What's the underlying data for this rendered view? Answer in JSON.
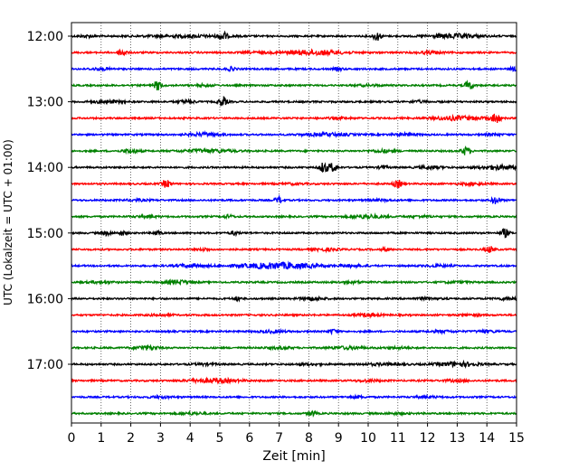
{
  "chart_data": {
    "type": "line",
    "title": "",
    "xlabel": "Zeit  [min]",
    "ylabel": "UTC (Lokalzeit = UTC + 01:00)",
    "xlim": [
      0,
      15
    ],
    "x_ticks": [
      0,
      1,
      2,
      3,
      4,
      5,
      6,
      7,
      8,
      9,
      10,
      11,
      12,
      13,
      14,
      15
    ],
    "y_ticks": [
      "12:00",
      "13:00",
      "14:00",
      "15:00",
      "16:00",
      "17:00"
    ],
    "grid": "vertical dotted",
    "trace_interval_min": 15,
    "colors": [
      "#000000",
      "#ff0000",
      "#0000ff",
      "#008000"
    ],
    "traces": [
      {
        "start": "12:00",
        "color": "#000000",
        "events": [
          [
            3.8,
            1.1,
            1.0
          ],
          [
            5.1,
            4.5,
            0.1
          ],
          [
            10.3,
            4.5,
            0.1
          ],
          [
            12.9,
            2.2,
            0.6
          ],
          [
            0.5,
            1.0,
            0.2
          ]
        ]
      },
      {
        "start": "12:15",
        "color": "#ff0000",
        "events": [
          [
            1.7,
            4.0,
            0.1
          ],
          [
            8.2,
            2.4,
            0.7
          ],
          [
            12.1,
            1.2,
            0.3
          ],
          [
            6.2,
            0.8,
            0.3
          ]
        ]
      },
      {
        "start": "12:30",
        "color": "#0000ff",
        "events": [
          [
            1.0,
            1.0,
            0.3
          ],
          [
            5.4,
            2.0,
            0.1
          ],
          [
            9.0,
            1.6,
            0.1
          ],
          [
            14.9,
            1.8,
            0.1
          ]
        ]
      },
      {
        "start": "12:45",
        "color": "#008000",
        "events": [
          [
            2.9,
            5.0,
            0.1
          ],
          [
            4.5,
            1.0,
            0.2
          ],
          [
            13.4,
            4.5,
            0.1
          ],
          [
            10.0,
            0.7,
            0.3
          ]
        ]
      },
      {
        "start": "13:00",
        "color": "#000000",
        "events": [
          [
            1.2,
            1.2,
            0.4
          ],
          [
            3.9,
            1.6,
            0.2
          ],
          [
            5.1,
            5.0,
            0.1
          ],
          [
            11.7,
            1.0,
            0.2
          ]
        ]
      },
      {
        "start": "13:15",
        "color": "#ff0000",
        "events": [
          [
            13.0,
            2.0,
            0.6
          ],
          [
            14.3,
            5.5,
            0.1
          ],
          [
            9.0,
            0.7,
            0.3
          ]
        ]
      },
      {
        "start": "13:30",
        "color": "#0000ff",
        "events": [
          [
            4.5,
            1.6,
            0.4
          ],
          [
            8.6,
            1.4,
            0.6
          ],
          [
            11.2,
            1.0,
            0.3
          ],
          [
            14.2,
            0.9,
            0.2
          ]
        ]
      },
      {
        "start": "13:45",
        "color": "#008000",
        "events": [
          [
            2.0,
            2.0,
            0.2
          ],
          [
            4.6,
            1.6,
            0.6
          ],
          [
            10.5,
            1.2,
            0.3
          ],
          [
            13.3,
            4.5,
            0.1
          ]
        ]
      },
      {
        "start": "14:00",
        "color": "#000000",
        "events": [
          [
            8.5,
            5.5,
            0.1
          ],
          [
            8.8,
            4.5,
            0.1
          ],
          [
            10.5,
            2.0,
            0.1
          ],
          [
            12.1,
            1.3,
            0.3
          ],
          [
            14.4,
            2.0,
            0.5
          ]
        ]
      },
      {
        "start": "14:15",
        "color": "#ff0000",
        "events": [
          [
            3.2,
            4.0,
            0.1
          ],
          [
            11.0,
            4.0,
            0.1
          ],
          [
            13.5,
            1.0,
            0.3
          ],
          [
            7.5,
            0.7,
            0.3
          ]
        ]
      },
      {
        "start": "14:30",
        "color": "#0000ff",
        "events": [
          [
            7.0,
            3.5,
            0.1
          ],
          [
            14.3,
            4.0,
            0.1
          ],
          [
            2.2,
            0.8,
            0.3
          ],
          [
            10.4,
            0.8,
            0.3
          ]
        ]
      },
      {
        "start": "14:45",
        "color": "#008000",
        "events": [
          [
            5.3,
            1.8,
            0.1
          ],
          [
            10.0,
            1.8,
            0.4
          ],
          [
            11.8,
            0.8,
            0.3
          ],
          [
            2.5,
            0.7,
            0.3
          ]
        ]
      },
      {
        "start": "15:00",
        "color": "#000000",
        "events": [
          [
            1.2,
            2.2,
            0.1
          ],
          [
            1.7,
            2.2,
            0.1
          ],
          [
            2.9,
            2.0,
            0.1
          ],
          [
            5.5,
            2.0,
            0.1
          ],
          [
            14.6,
            4.5,
            0.1
          ]
        ]
      },
      {
        "start": "15:15",
        "color": "#ff0000",
        "events": [
          [
            4.5,
            1.4,
            0.1
          ],
          [
            8.6,
            1.2,
            0.3
          ],
          [
            10.6,
            1.8,
            0.1
          ],
          [
            14.1,
            3.5,
            0.1
          ]
        ]
      },
      {
        "start": "15:30",
        "color": "#0000ff",
        "events": [
          [
            4.0,
            1.4,
            0.4
          ],
          [
            7.0,
            3.2,
            0.9
          ],
          [
            9.5,
            1.0,
            0.3
          ],
          [
            12.3,
            0.9,
            0.3
          ]
        ]
      },
      {
        "start": "15:45",
        "color": "#008000",
        "events": [
          [
            3.6,
            2.0,
            0.3
          ],
          [
            1.0,
            0.9,
            0.3
          ],
          [
            9.5,
            0.8,
            0.3
          ],
          [
            13.0,
            0.8,
            0.3
          ]
        ]
      },
      {
        "start": "16:00",
        "color": "#000000",
        "events": [
          [
            5.6,
            2.2,
            0.1
          ],
          [
            8.1,
            1.6,
            0.3
          ],
          [
            12.0,
            1.0,
            0.3
          ],
          [
            14.7,
            1.1,
            0.3
          ]
        ]
      },
      {
        "start": "16:15",
        "color": "#ff0000",
        "events": [
          [
            10.0,
            1.4,
            0.3
          ],
          [
            3.0,
            0.8,
            0.3
          ],
          [
            13.5,
            0.8,
            0.3
          ]
        ]
      },
      {
        "start": "16:30",
        "color": "#0000ff",
        "events": [
          [
            6.8,
            1.2,
            0.3
          ],
          [
            8.8,
            2.2,
            0.1
          ],
          [
            12.5,
            0.9,
            0.3
          ],
          [
            14.0,
            0.9,
            0.3
          ]
        ]
      },
      {
        "start": "16:45",
        "color": "#008000",
        "events": [
          [
            2.5,
            2.0,
            0.3
          ],
          [
            7.0,
            1.0,
            0.3
          ],
          [
            9.3,
            1.3,
            0.4
          ],
          [
            11.0,
            0.8,
            0.3
          ]
        ]
      },
      {
        "start": "17:00",
        "color": "#000000",
        "events": [
          [
            10.5,
            1.0,
            0.5
          ],
          [
            13.0,
            2.2,
            0.5
          ],
          [
            4.5,
            0.8,
            0.3
          ],
          [
            8.0,
            0.8,
            0.3
          ]
        ]
      },
      {
        "start": "17:15",
        "color": "#ff0000",
        "events": [
          [
            4.8,
            2.0,
            0.6
          ],
          [
            10.0,
            1.0,
            0.3
          ],
          [
            13.0,
            1.0,
            0.3
          ]
        ]
      },
      {
        "start": "17:30",
        "color": "#0000ff",
        "events": [
          [
            9.6,
            1.0,
            0.2
          ],
          [
            3.0,
            0.8,
            0.3
          ],
          [
            12.0,
            0.8,
            0.3
          ]
        ]
      },
      {
        "start": "17:45",
        "color": "#008000",
        "events": [
          [
            8.1,
            2.4,
            0.1
          ],
          [
            4.1,
            1.0,
            0.3
          ],
          [
            11.0,
            0.7,
            0.3
          ]
        ]
      }
    ]
  }
}
